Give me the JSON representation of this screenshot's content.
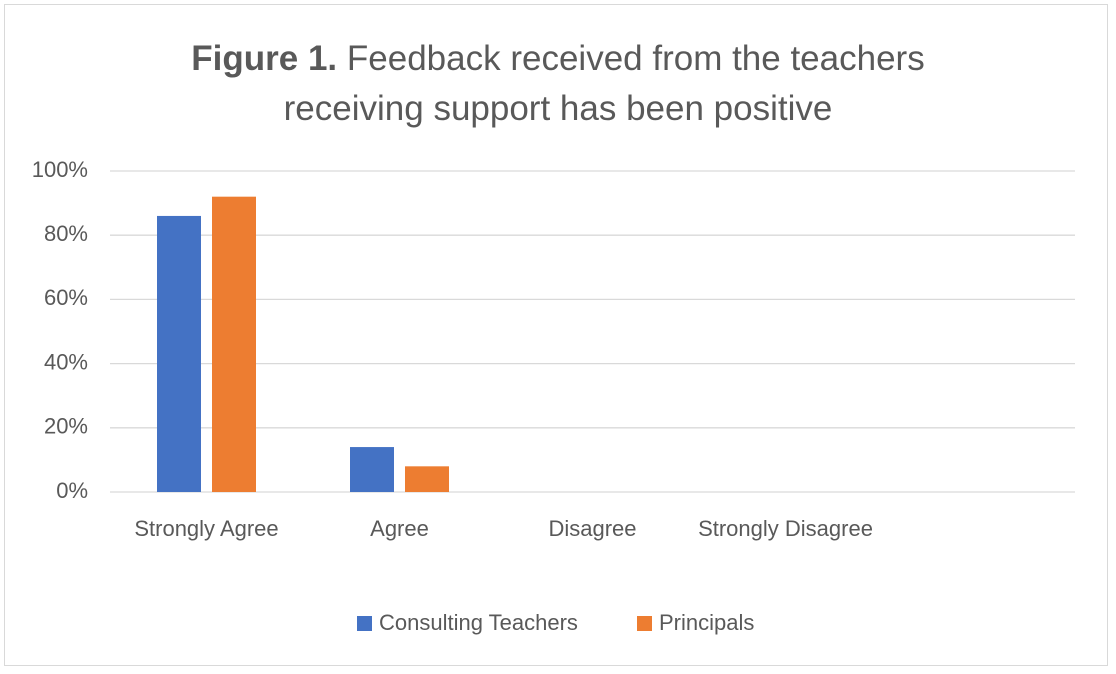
{
  "chart_data": {
    "type": "bar",
    "title_label": "Figure 1.",
    "title": "Feedback received from the teachers receiving support has been positive",
    "categories": [
      "Strongly Agree",
      "Agree",
      "Disagree",
      "Strongly Disagree",
      null
    ],
    "series": [
      {
        "name": "Consulting Teachers",
        "color": "#4472c4",
        "values": [
          86,
          14,
          0,
          0,
          null
        ]
      },
      {
        "name": "Principals",
        "color": "#ed7d31",
        "values": [
          92,
          8,
          0,
          0,
          null
        ]
      }
    ],
    "ylim": [
      0,
      100
    ],
    "yticks": [
      {
        "value": 0,
        "label": "0%"
      },
      {
        "value": 20,
        "label": "20%"
      },
      {
        "value": 40,
        "label": "40%"
      },
      {
        "value": 60,
        "label": "60%"
      },
      {
        "value": 80,
        "label": "80%"
      },
      {
        "value": 100,
        "label": "100%"
      }
    ],
    "grid": true,
    "legend": "bottom"
  }
}
